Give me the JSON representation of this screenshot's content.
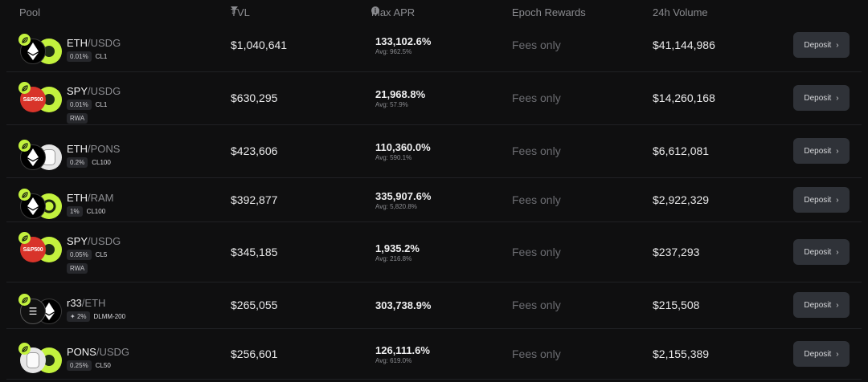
{
  "header": {
    "pool": "Pool",
    "tvl": "TVL",
    "tvl_sort_icon": "↓",
    "tvl_filter_icon": "filter-icon",
    "max_apr": "Max APR",
    "max_apr_swap_icon": "⇄",
    "max_apr_info_icon": "i",
    "epoch_rewards": "Epoch Rewards",
    "volume_24h": "24h Volume"
  },
  "colors": {
    "accent": "#c3f23e",
    "button_bg": "#2f3238",
    "spy_red": "#d8342a"
  },
  "rows": [
    {
      "base": "ETH",
      "slash": "/",
      "quote": "USDG",
      "icon_a": "eth",
      "icon_b": "usdg",
      "fee": "0.01%",
      "type": "CL1",
      "rwa": "",
      "tvl": "$1,040,641",
      "max_apr": "133,102.6%",
      "avg_apr": "Avg: 962.5%",
      "epoch": "Fees only",
      "volume": "$41,144,986",
      "deposit": "Deposit",
      "chevron": "›"
    },
    {
      "base": "SPY",
      "slash": "/",
      "quote": "USDG",
      "icon_a": "spy",
      "icon_b": "usdg",
      "icon_a_text": "S&P500",
      "fee": "0.01%",
      "type": "CL1",
      "rwa": "RWA",
      "tvl": "$630,295",
      "max_apr": "21,968.8%",
      "avg_apr": "Avg: 57.9%",
      "epoch": "Fees only",
      "volume": "$14,260,168",
      "deposit": "Deposit",
      "chevron": "›"
    },
    {
      "base": "ETH",
      "slash": "/",
      "quote": "PONS",
      "icon_a": "eth",
      "icon_b": "pons",
      "fee": "0.2%",
      "type": "CL100",
      "rwa": "",
      "tvl": "$423,606",
      "max_apr": "110,360.0%",
      "avg_apr": "Avg: 590.1%",
      "epoch": "Fees only",
      "volume": "$6,612,081",
      "deposit": "Deposit",
      "chevron": "›"
    },
    {
      "base": "ETH",
      "slash": "/",
      "quote": "RAM",
      "icon_a": "eth",
      "icon_b": "ram",
      "fee": "1%",
      "type": "CL100",
      "rwa": "",
      "tvl": "$392,877",
      "max_apr": "335,907.6%",
      "avg_apr": "Avg: 5,820.8%",
      "epoch": "Fees only",
      "volume": "$2,922,329",
      "deposit": "Deposit",
      "chevron": "›"
    },
    {
      "base": "SPY",
      "slash": "/",
      "quote": "USDG",
      "icon_a": "spy",
      "icon_b": "usdg",
      "icon_a_text": "S&P500",
      "fee": "0.05%",
      "type": "CL5",
      "rwa": "RWA",
      "tvl": "$345,185",
      "max_apr": "1,935.2%",
      "avg_apr": "Avg: 216.8%",
      "epoch": "Fees only",
      "volume": "$237,293",
      "deposit": "Deposit",
      "chevron": "›"
    },
    {
      "base": "r33",
      "slash": "/",
      "quote": "ETH",
      "icon_a": "r33",
      "icon_b": "eth",
      "fee": "2%",
      "fee_prefix": "✦",
      "type": "DLMM-200",
      "rwa": "",
      "tvl": "$265,055",
      "max_apr": "303,738.9%",
      "avg_apr": "",
      "epoch": "Fees only",
      "volume": "$215,508",
      "deposit": "Deposit",
      "chevron": "›"
    },
    {
      "base": "PONS",
      "slash": "/",
      "quote": "USDG",
      "icon_a": "pons",
      "icon_b": "usdg",
      "fee": "0.25%",
      "type": "CL50",
      "rwa": "",
      "tvl": "$256,601",
      "max_apr": "126,111.6%",
      "avg_apr": "Avg: 619.0%",
      "epoch": "Fees only",
      "volume": "$2,155,389",
      "deposit": "Deposit",
      "chevron": "›"
    }
  ]
}
